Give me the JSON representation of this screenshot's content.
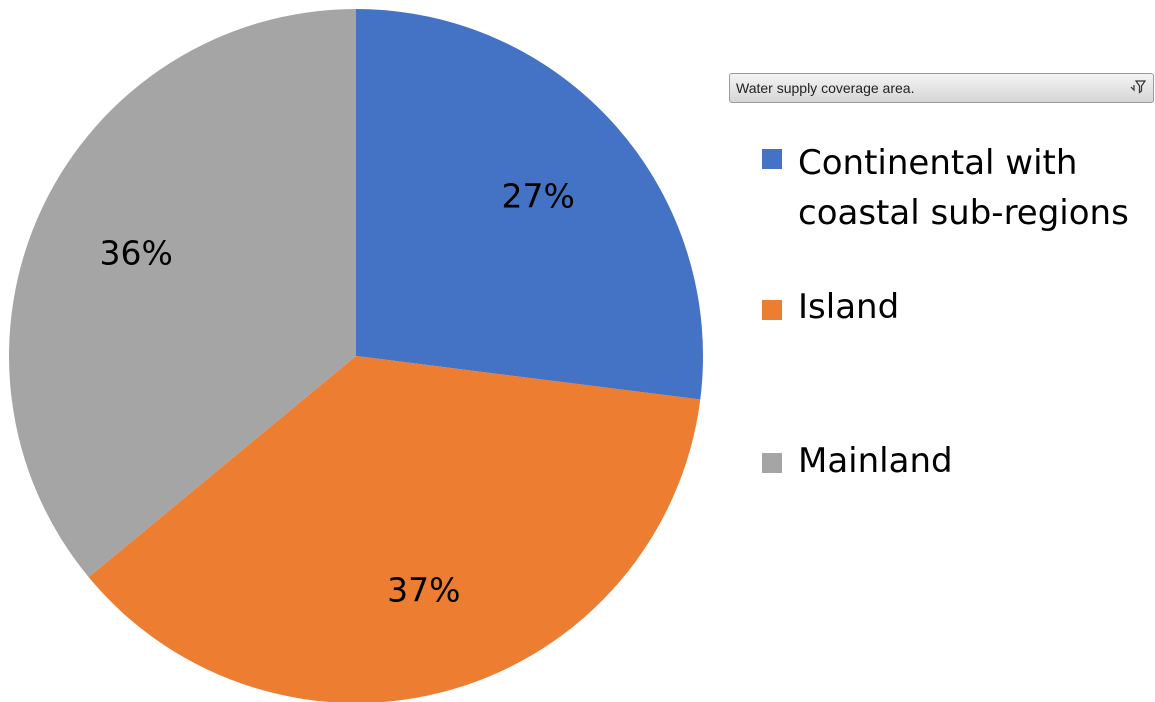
{
  "chart_data": {
    "type": "pie",
    "categories": [
      "Continental with coastal sub-regions",
      "Island",
      "Mainland"
    ],
    "values": [
      27,
      37,
      36
    ],
    "labels": [
      "27%",
      "37%",
      "36%"
    ],
    "colors": [
      "#4472C4",
      "#ED7D31",
      "#A5A5A5"
    ],
    "start_angle_deg": 0,
    "direction": "clockwise",
    "legend_position": "right"
  },
  "field_button": {
    "label": "Water supply coverage area.",
    "icon": "filter-icon"
  },
  "legend": {
    "items": [
      {
        "label": "Continental with\ncoastal sub-regions",
        "color": "#4472C4"
      },
      {
        "label": "Island",
        "color": "#ED7D31"
      },
      {
        "label": "Mainland",
        "color": "#A5A5A5"
      }
    ]
  }
}
